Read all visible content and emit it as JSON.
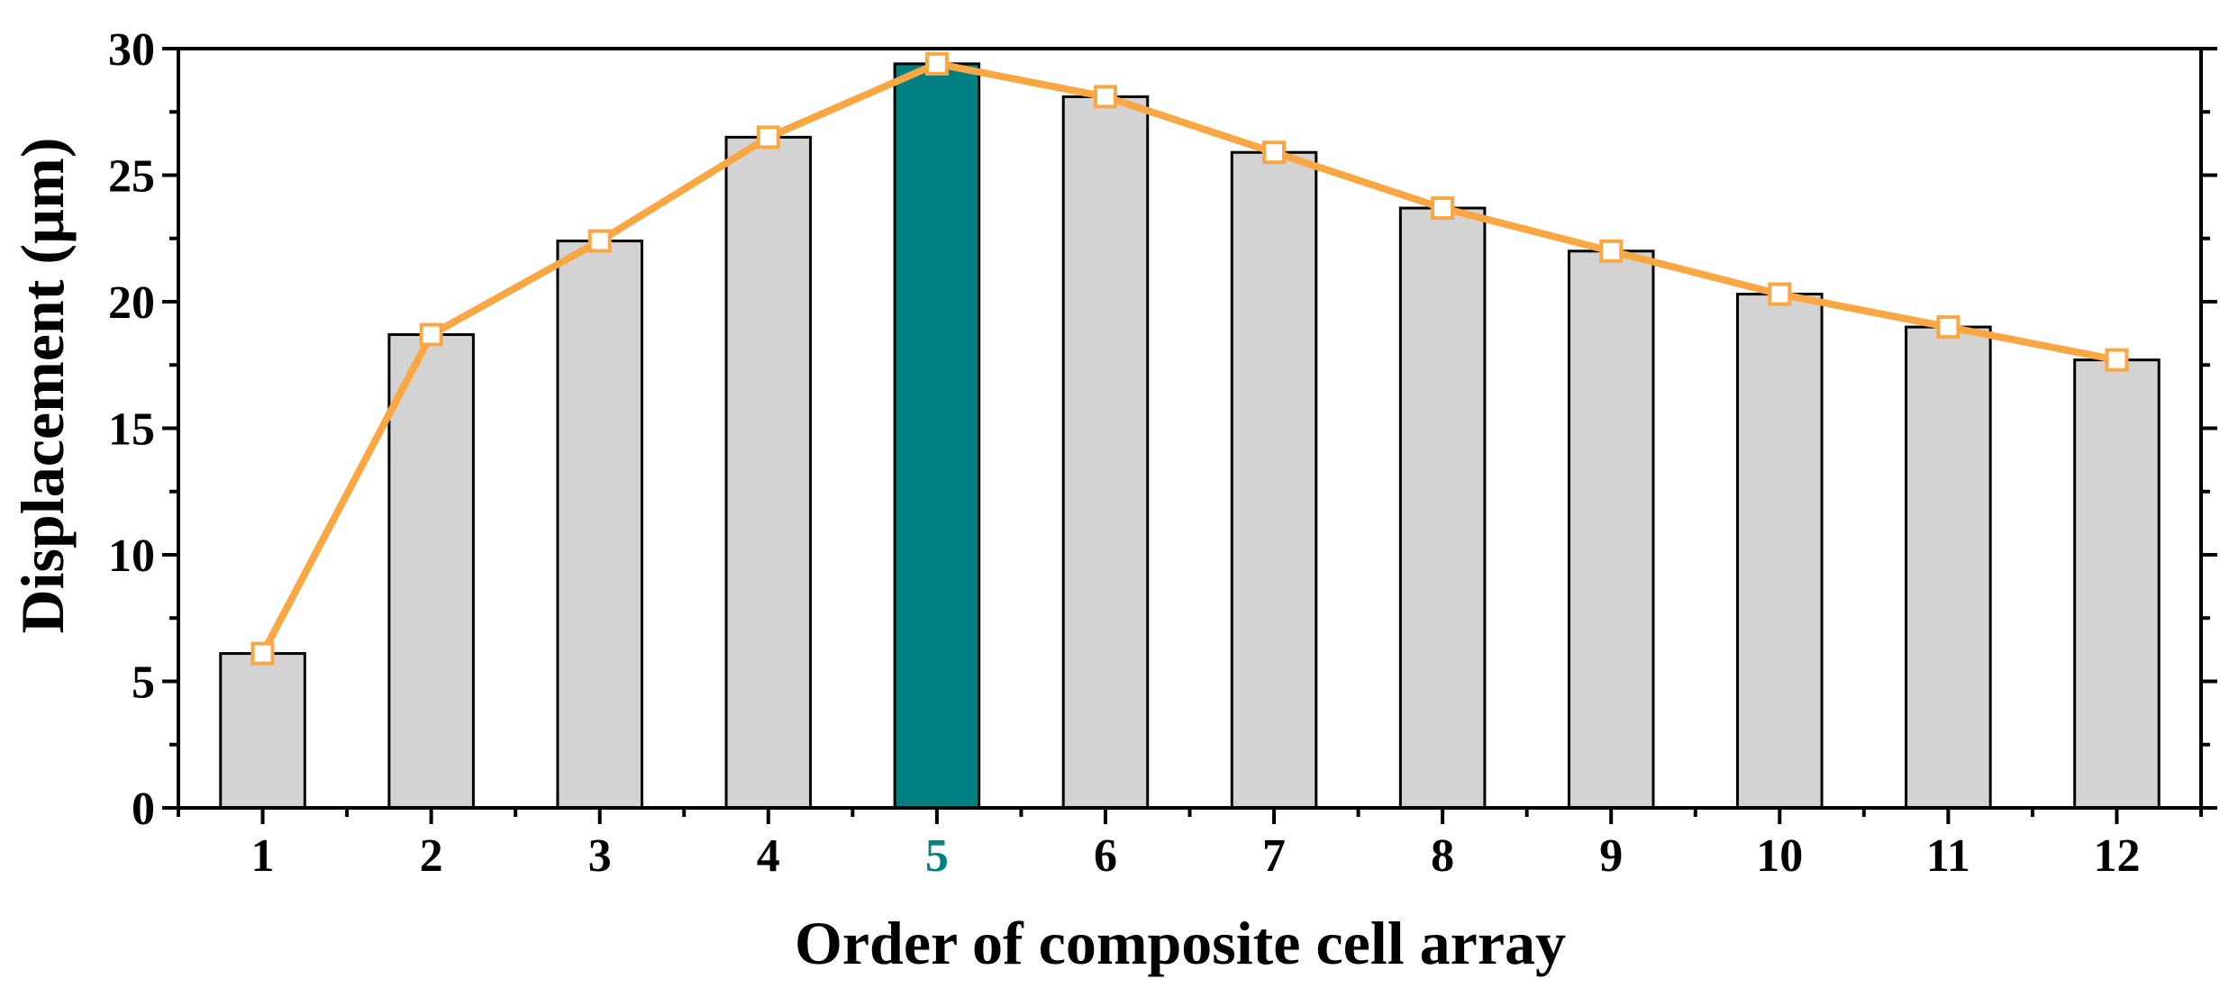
{
  "chart_data": {
    "type": "bar",
    "categories": [
      "1",
      "2",
      "3",
      "4",
      "5",
      "6",
      "7",
      "8",
      "9",
      "10",
      "11",
      "12"
    ],
    "values": [
      6.1,
      18.7,
      22.4,
      26.5,
      29.4,
      28.1,
      25.9,
      23.7,
      22.0,
      20.3,
      19.0,
      17.7
    ],
    "overlay_line": {
      "type": "line",
      "marker": "open-square",
      "values": [
        6.1,
        18.7,
        22.4,
        26.5,
        29.4,
        28.1,
        25.9,
        23.7,
        22.0,
        20.3,
        19.0,
        17.7
      ]
    },
    "highlighted_category": "5",
    "xlabel": "Order of composite cell array",
    "ylabel": "Displacement (µm)",
    "ylim": [
      0,
      30
    ],
    "yticks": [
      "0",
      "5",
      "10",
      "15",
      "20",
      "25",
      "30"
    ],
    "grid": false,
    "legend": "none",
    "colors": {
      "bar": "#d3d3d3",
      "bar_highlight": "#008080",
      "line": "#f9a742",
      "highlight_label": "#008080"
    }
  }
}
